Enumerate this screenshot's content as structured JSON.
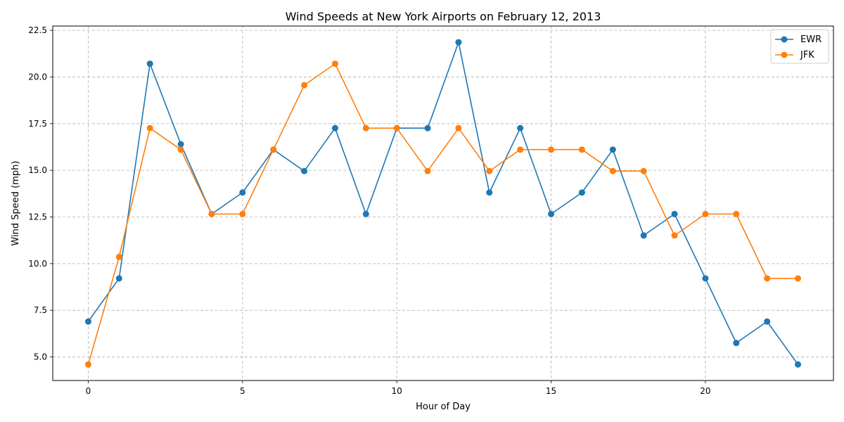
{
  "chart_data": {
    "type": "line",
    "title": "Wind Speeds at New York Airports on February 12, 2013",
    "xlabel": "Hour of Day",
    "ylabel": "Wind Speed (mph)",
    "x": [
      0,
      1,
      2,
      3,
      4,
      5,
      6,
      7,
      8,
      9,
      10,
      11,
      12,
      13,
      14,
      15,
      16,
      17,
      18,
      19,
      20,
      21,
      22,
      23
    ],
    "xlim": [
      -1.15,
      24.15
    ],
    "ylim": [
      3.74,
      22.73
    ],
    "xticks": [
      0,
      5,
      10,
      15,
      20
    ],
    "xtick_labels": [
      "0",
      "5",
      "10",
      "15",
      "20"
    ],
    "yticks": [
      5.0,
      7.5,
      10.0,
      12.5,
      15.0,
      17.5,
      20.0,
      22.5
    ],
    "ytick_labels": [
      "5.0",
      "7.5",
      "10.0",
      "12.5",
      "15.0",
      "17.5",
      "20.0",
      "22.5"
    ],
    "grid": true,
    "legend_position": "top-right",
    "series": [
      {
        "name": "EWR",
        "color": "#1f77b4",
        "marker": "circle",
        "values": [
          6.9,
          9.21,
          20.71,
          16.4,
          12.66,
          13.81,
          16.11,
          14.96,
          17.26,
          12.66,
          17.26,
          17.26,
          21.86,
          13.81,
          17.26,
          12.66,
          13.81,
          16.11,
          11.51,
          12.66,
          9.21,
          5.75,
          6.9,
          4.6
        ]
      },
      {
        "name": "JFK",
        "color": "#ff7f0e",
        "marker": "circle",
        "values": [
          4.6,
          10.36,
          17.26,
          16.11,
          12.66,
          12.66,
          16.11,
          19.56,
          20.71,
          17.26,
          17.26,
          14.96,
          17.26,
          14.96,
          16.11,
          16.11,
          16.11,
          14.96,
          14.96,
          11.51,
          12.66,
          12.66,
          9.21,
          9.21
        ]
      }
    ]
  }
}
